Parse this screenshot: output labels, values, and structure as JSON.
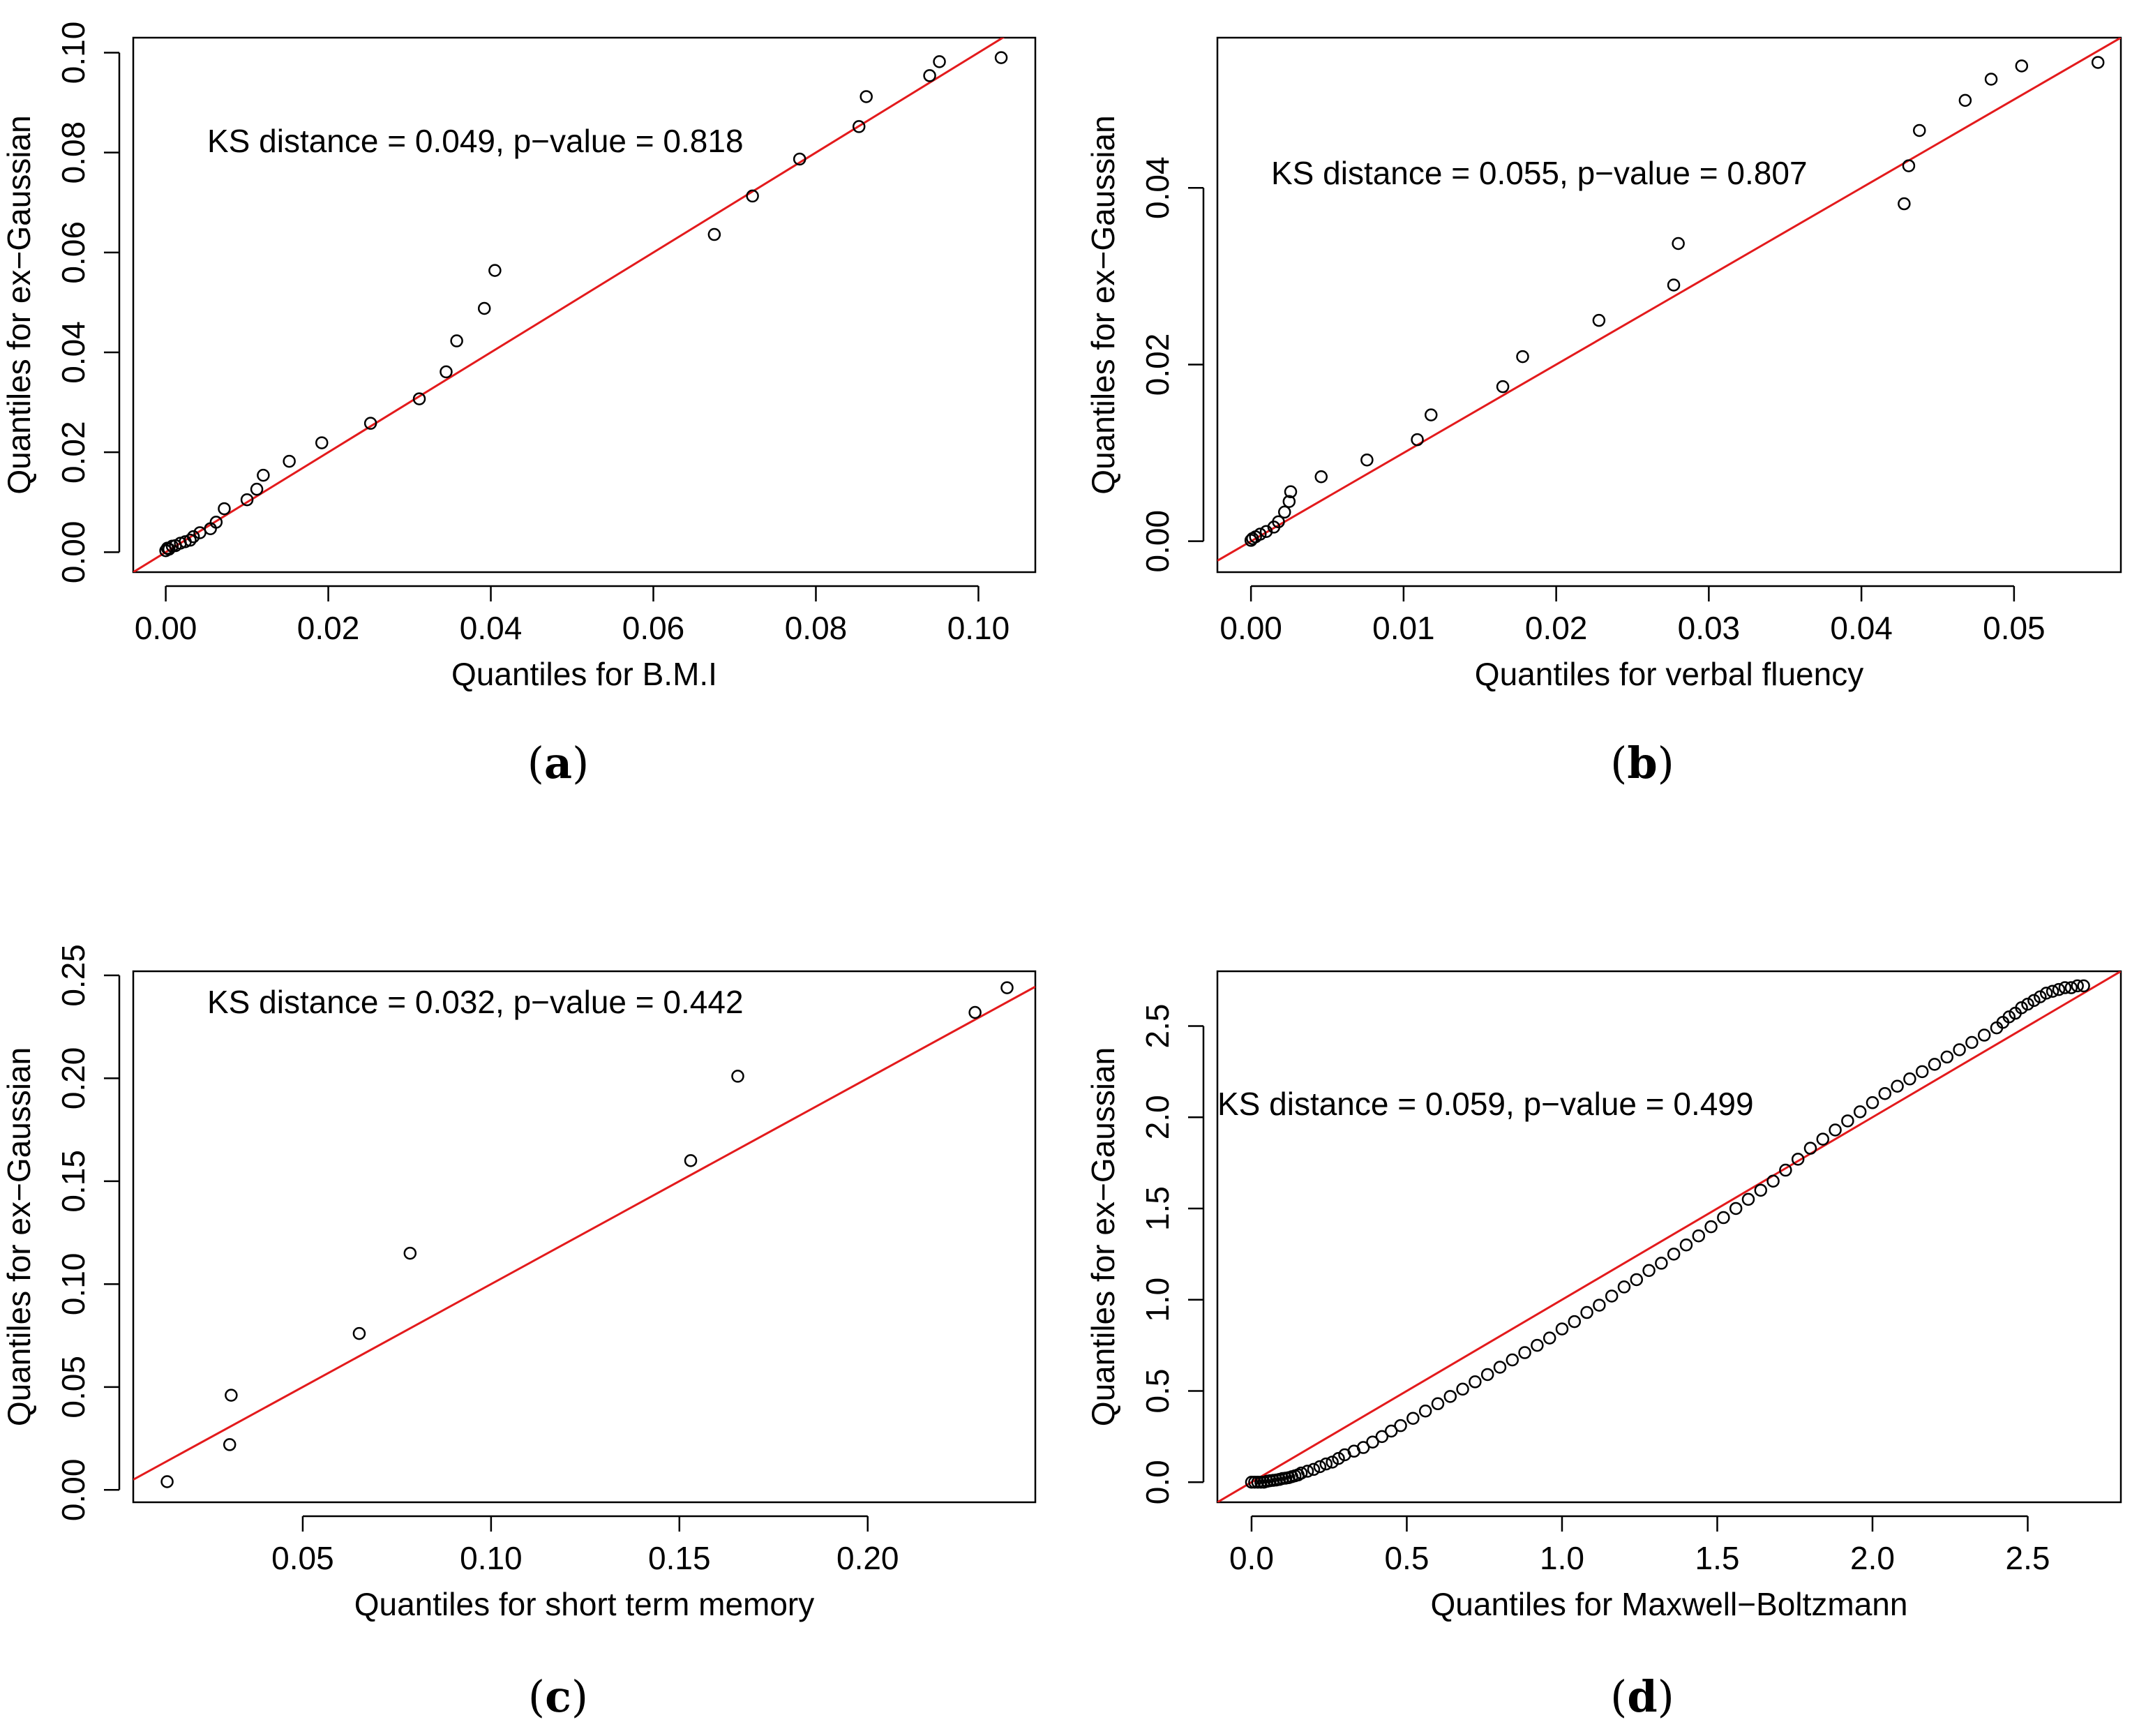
{
  "figure": {
    "panels": [
      "a",
      "b",
      "c",
      "d"
    ]
  },
  "chart_data": [
    {
      "type": "scatter",
      "panel_label": "a",
      "xlabel": "Quantiles for B.M.I",
      "ylabel": "Quantiles for ex−Gaussian",
      "annotation": "KS distance = 0.049, p−value = 0.818",
      "xlim": [
        -0.004,
        0.107
      ],
      "ylim": [
        -0.004,
        0.103
      ],
      "xticks": [
        "0.00",
        "0.02",
        "0.04",
        "0.06",
        "0.08",
        "0.10"
      ],
      "xtick_values": [
        0,
        0.02,
        0.04,
        0.06,
        0.08,
        0.1
      ],
      "yticks": [
        "0.00",
        "0.02",
        "0.04",
        "0.06",
        "0.08",
        "0.10"
      ],
      "ytick_values": [
        0,
        0.02,
        0.04,
        0.06,
        0.08,
        0.1
      ],
      "reference_line": {
        "intercept": 0,
        "slope": 1,
        "color": "#e31a1c"
      },
      "point_color": "#000000",
      "x": [
        0.0,
        0.0002,
        0.0004,
        0.0008,
        0.0012,
        0.0018,
        0.0024,
        0.003,
        0.0034,
        0.0042,
        0.0055,
        0.0062,
        0.0072,
        0.01,
        0.0112,
        0.012,
        0.0152,
        0.0192,
        0.0252,
        0.0312,
        0.0345,
        0.0358,
        0.0392,
        0.0405,
        0.0675,
        0.0722,
        0.078,
        0.0853,
        0.0862,
        0.094,
        0.0952,
        0.1028
      ],
      "y": [
        0.0003,
        0.0008,
        0.0006,
        0.0012,
        0.0013,
        0.0018,
        0.0021,
        0.0024,
        0.0031,
        0.0039,
        0.0047,
        0.006,
        0.0087,
        0.0105,
        0.0126,
        0.0154,
        0.0182,
        0.0219,
        0.0258,
        0.0307,
        0.0361,
        0.0423,
        0.0488,
        0.0564,
        0.0636,
        0.0713,
        0.0787,
        0.0852,
        0.0912,
        0.0954,
        0.0982,
        0.099
      ]
    },
    {
      "type": "scatter",
      "panel_label": "b",
      "xlabel": "Quantiles for verbal fluency",
      "ylabel": "Quantiles for ex−Gaussian",
      "annotation": "KS distance = 0.055, p−value = 0.807",
      "xlim": [
        -0.0022,
        0.057
      ],
      "ylim": [
        -0.0035,
        0.057
      ],
      "xticks": [
        "0.00",
        "0.01",
        "0.02",
        "0.03",
        "0.04",
        "0.05"
      ],
      "xtick_values": [
        0,
        0.01,
        0.02,
        0.03,
        0.04,
        0.05
      ],
      "yticks": [
        "0.00",
        "0.02",
        "0.04"
      ],
      "ytick_values": [
        0,
        0.02,
        0.04
      ],
      "reference_line": {
        "intercept": 0,
        "slope": 1,
        "color": "#e31a1c"
      },
      "point_color": "#000000",
      "x": [
        0.0,
        0.0001,
        0.0003,
        0.0006,
        0.001,
        0.0015,
        0.0018,
        0.0022,
        0.0025,
        0.0026,
        0.0046,
        0.0076,
        0.0109,
        0.0118,
        0.0165,
        0.0178,
        0.0228,
        0.0277,
        0.028,
        0.0428,
        0.0431,
        0.0438,
        0.0468,
        0.0485,
        0.0505,
        0.0555
      ],
      "y": [
        0.0001,
        0.0003,
        0.0005,
        0.0008,
        0.0011,
        0.0016,
        0.0022,
        0.0033,
        0.0045,
        0.0056,
        0.0073,
        0.0092,
        0.0115,
        0.0143,
        0.0175,
        0.0209,
        0.025,
        0.029,
        0.0337,
        0.0382,
        0.0425,
        0.0465,
        0.0499,
        0.0523,
        0.0538,
        0.0542
      ]
    },
    {
      "type": "scatter",
      "panel_label": "c",
      "xlabel": "Quantiles for short term memory",
      "ylabel": "Quantiles for ex−Gaussian",
      "annotation": "KS distance = 0.032, p−value = 0.442",
      "xlim": [
        0.005,
        0.2445
      ],
      "ylim": [
        -0.006,
        0.252
      ],
      "xticks": [
        "0.05",
        "0.10",
        "0.15",
        "0.20"
      ],
      "xtick_values": [
        0.05,
        0.1,
        0.15,
        0.2
      ],
      "yticks": [
        "0.00",
        "0.05",
        "0.10",
        "0.15",
        "0.20",
        "0.25"
      ],
      "ytick_values": [
        0,
        0.05,
        0.1,
        0.15,
        0.2,
        0.25
      ],
      "reference_line": {
        "intercept": 0,
        "slope": 1,
        "color": "#e31a1c"
      },
      "point_color": "#000000",
      "x": [
        0.014,
        0.0306,
        0.031,
        0.065,
        0.0785,
        0.153,
        0.1655,
        0.2285,
        0.237
      ],
      "y": [
        0.004,
        0.022,
        0.046,
        0.076,
        0.115,
        0.16,
        0.201,
        0.232,
        0.244
      ]
    },
    {
      "type": "scatter",
      "panel_label": "d",
      "xlabel": "Quantiles for Maxwell−Boltzmann",
      "ylabel": "Quantiles for ex−Gaussian",
      "annotation": "KS distance = 0.059, p−value = 0.499",
      "xlim": [
        -0.11,
        2.8
      ],
      "ylim": [
        -0.11,
        2.8
      ],
      "xticks": [
        "0.0",
        "0.5",
        "1.0",
        "1.5",
        "2.0",
        "2.5"
      ],
      "xtick_values": [
        0,
        0.5,
        1.0,
        1.5,
        2.0,
        2.5
      ],
      "yticks": [
        "0.0",
        "0.5",
        "1.0",
        "1.5",
        "2.0",
        "2.5"
      ],
      "ytick_values": [
        0,
        0.5,
        1.0,
        1.5,
        2.0,
        2.5
      ],
      "reference_line": {
        "intercept": 0,
        "slope": 1,
        "color": "#e31a1c"
      },
      "point_color": "#000000",
      "x": [
        0.0,
        0.01,
        0.02,
        0.03,
        0.04,
        0.05,
        0.06,
        0.07,
        0.08,
        0.09,
        0.1,
        0.11,
        0.12,
        0.13,
        0.14,
        0.15,
        0.16,
        0.18,
        0.2,
        0.22,
        0.24,
        0.26,
        0.28,
        0.3,
        0.33,
        0.36,
        0.39,
        0.42,
        0.45,
        0.48,
        0.52,
        0.56,
        0.6,
        0.64,
        0.68,
        0.72,
        0.76,
        0.8,
        0.84,
        0.88,
        0.92,
        0.96,
        1.0,
        1.04,
        1.08,
        1.12,
        1.16,
        1.2,
        1.24,
        1.28,
        1.32,
        1.36,
        1.4,
        1.44,
        1.48,
        1.52,
        1.56,
        1.6,
        1.64,
        1.68,
        1.72,
        1.76,
        1.8,
        1.84,
        1.88,
        1.92,
        1.96,
        2.0,
        2.04,
        2.08,
        2.12,
        2.16,
        2.2,
        2.24,
        2.28,
        2.32,
        2.36,
        2.4,
        2.42,
        2.44,
        2.46,
        2.48,
        2.5,
        2.52,
        2.54,
        2.56,
        2.58,
        2.6,
        2.62,
        2.64,
        2.66,
        2.68
      ],
      "y": [
        0.0,
        0.0,
        0.0,
        0.0,
        0.0,
        0.005,
        0.008,
        0.01,
        0.012,
        0.015,
        0.02,
        0.022,
        0.025,
        0.03,
        0.035,
        0.04,
        0.05,
        0.06,
        0.07,
        0.085,
        0.1,
        0.11,
        0.13,
        0.15,
        0.17,
        0.19,
        0.22,
        0.25,
        0.28,
        0.31,
        0.35,
        0.39,
        0.43,
        0.47,
        0.51,
        0.55,
        0.59,
        0.63,
        0.67,
        0.71,
        0.75,
        0.79,
        0.84,
        0.88,
        0.93,
        0.97,
        1.02,
        1.07,
        1.11,
        1.16,
        1.2,
        1.25,
        1.3,
        1.35,
        1.4,
        1.45,
        1.5,
        1.55,
        1.6,
        1.65,
        1.71,
        1.77,
        1.83,
        1.88,
        1.93,
        1.98,
        2.03,
        2.08,
        2.13,
        2.17,
        2.21,
        2.25,
        2.29,
        2.33,
        2.37,
        2.41,
        2.45,
        2.49,
        2.52,
        2.55,
        2.57,
        2.6,
        2.62,
        2.64,
        2.66,
        2.68,
        2.69,
        2.7,
        2.71,
        2.71,
        2.72,
        2.72
      ]
    }
  ]
}
